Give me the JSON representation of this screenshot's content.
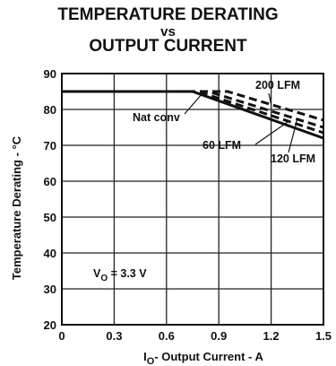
{
  "chart_data": {
    "type": "line",
    "title_lines": [
      "TEMPERATURE DERATING",
      "vs",
      "OUTPUT CURRENT"
    ],
    "ylabel": "Temperature Derating - °C",
    "xlabel_main": "I",
    "xlabel_sub": "O",
    "xlabel_rest": "- Output Current - A",
    "xlim": [
      0,
      1.5
    ],
    "ylim": [
      20,
      90
    ],
    "x_ticks": [
      0,
      0.3,
      0.6,
      0.9,
      1.2,
      1.5
    ],
    "x_tick_labels": [
      "0",
      "0.3",
      "0.6",
      "0.9",
      "1.2",
      "1.5"
    ],
    "y_ticks": [
      20,
      30,
      40,
      50,
      60,
      70,
      80,
      90
    ],
    "y_tick_labels": [
      "20",
      "30",
      "40",
      "50",
      "60",
      "70",
      "80",
      "90"
    ],
    "grid": true,
    "annotation": {
      "main": "V",
      "sub": "O",
      "rest": " = 3.3 V"
    },
    "series": [
      {
        "name": "Nat conv",
        "style": "solid",
        "x": [
          0,
          0.75,
          1.5
        ],
        "y": [
          85,
          85,
          72
        ]
      },
      {
        "name": "60 LFM",
        "style": "dashed",
        "x": [
          0,
          0.78,
          1.5
        ],
        "y": [
          85,
          85,
          73.5
        ]
      },
      {
        "name": "120 LFM",
        "style": "dashed",
        "x": [
          0,
          0.84,
          1.5
        ],
        "y": [
          85,
          85,
          75
        ]
      },
      {
        "name": "200 LFM",
        "style": "dashed",
        "x": [
          0,
          0.95,
          1.5
        ],
        "y": [
          85,
          85,
          77
        ]
      }
    ]
  }
}
